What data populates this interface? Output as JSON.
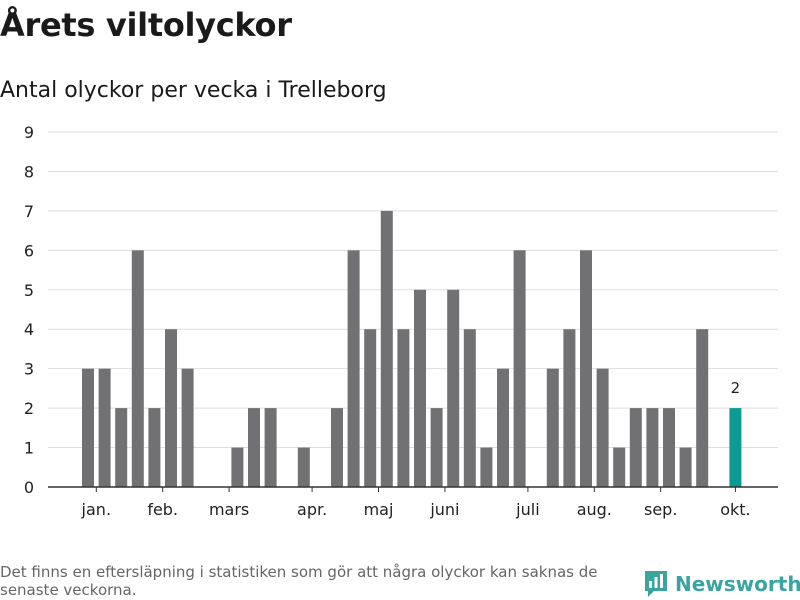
{
  "header": {
    "title": "Årets viltolyckor",
    "subtitle": "Antal olyckor per vecka i Trelleborg"
  },
  "footer": {
    "note": "Det finns en eftersläpning i statistiken som gör att några olyckor kan saknas de senaste veckorna.",
    "brand": "Newsworthy"
  },
  "colors": {
    "bar": "#717073",
    "highlight": "#0b9b92",
    "grid": "#dddddd",
    "axis": "#333333",
    "brand": "#3aa5a0"
  },
  "chart_data": {
    "type": "bar",
    "x": [
      1,
      2,
      3,
      4,
      5,
      6,
      7,
      8,
      9,
      10,
      11,
      12,
      13,
      14,
      15,
      16,
      17,
      18,
      19,
      20,
      21,
      22,
      23,
      24,
      25,
      26,
      27,
      28,
      29,
      30,
      31,
      32,
      33,
      34,
      35,
      36,
      37,
      38,
      39,
      40
    ],
    "values": [
      3,
      3,
      2,
      6,
      2,
      4,
      3,
      0,
      0,
      1,
      2,
      2,
      0,
      1,
      0,
      2,
      6,
      4,
      7,
      4,
      5,
      2,
      5,
      4,
      1,
      3,
      6,
      0,
      3,
      4,
      6,
      3,
      1,
      2,
      2,
      2,
      1,
      4,
      0,
      2
    ],
    "highlight_index": 39,
    "highlight_label": "2",
    "month_labels": [
      "jan.",
      "feb.",
      "mars",
      "apr.",
      "maj",
      "juni",
      "juli",
      "aug.",
      "sep.",
      "okt."
    ],
    "month_label_x": [
      1.5,
      5.5,
      9.5,
      14.5,
      18.5,
      22.5,
      27.5,
      31.5,
      35.5,
      40
    ],
    "yticks": [
      0,
      1,
      2,
      3,
      4,
      5,
      6,
      7,
      8,
      9
    ],
    "ylim": [
      0,
      9
    ],
    "grid": true
  }
}
